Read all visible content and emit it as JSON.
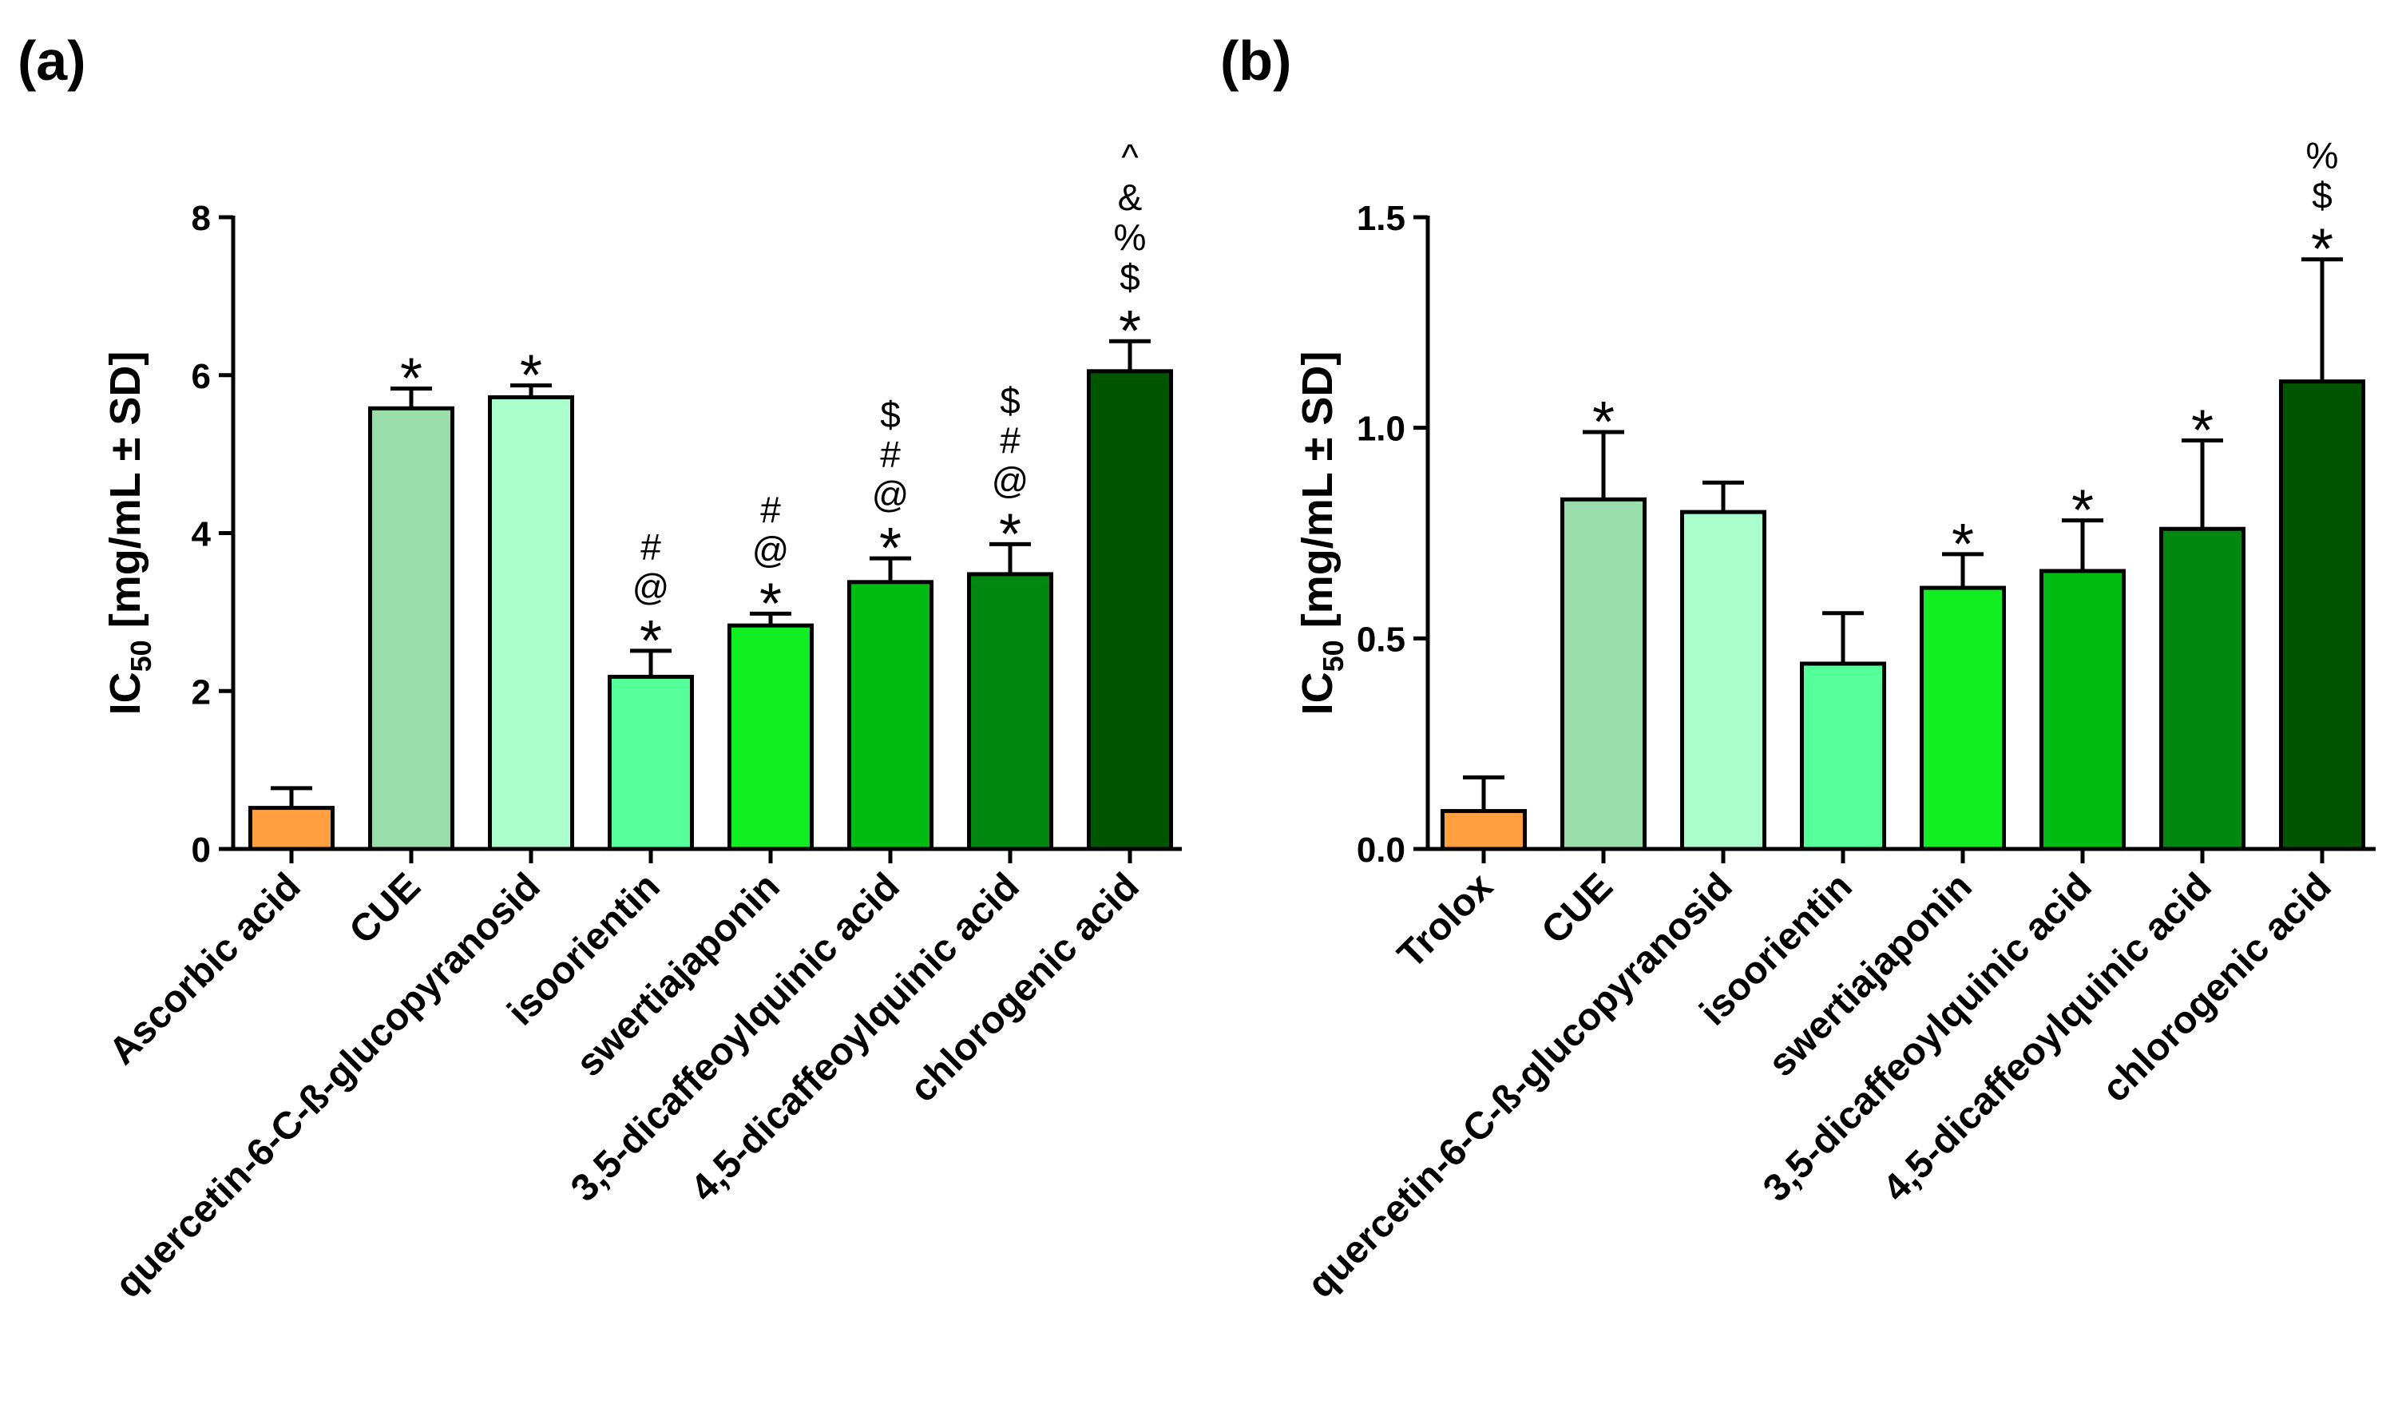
{
  "chart_data": [
    {
      "type": "bar",
      "panel_label": "(a)",
      "ylabel": "IC50 [mg/mL ± SD]",
      "ylabel_main": "IC",
      "ylabel_sub": "50",
      "ylabel_rest": " [mg/mL ± SD]",
      "ylim": [
        0,
        8
      ],
      "yticks": [
        "0",
        "2",
        "4",
        "6",
        "8"
      ],
      "ytick_values": [
        0,
        2,
        4,
        6,
        8
      ],
      "categories": [
        "Ascorbic acid",
        "CUE",
        "quercetin-6-C-ß-glucopyranosid",
        "isoorientin",
        "swertiajaponin",
        "3,5-dicaffeoylquinic acid",
        "4,5-dicaffeoylquinic acid",
        "chlorogenic acid"
      ],
      "values": [
        0.52,
        5.58,
        5.72,
        2.18,
        2.83,
        3.38,
        3.48,
        6.05
      ],
      "errors": [
        0.25,
        0.25,
        0.15,
        0.33,
        0.15,
        0.3,
        0.38,
        0.38
      ],
      "colors": [
        "#FF9F40",
        "#99DDAA",
        "#AAFFCC",
        "#55FF99",
        "#11EE22",
        "#00BB11",
        "#008811",
        "#005500"
      ],
      "annotations": [
        [],
        [
          "*"
        ],
        [
          "*"
        ],
        [
          "*",
          "@",
          "#"
        ],
        [
          "*",
          "@",
          "#"
        ],
        [
          "*",
          "@",
          "#",
          "$"
        ],
        [
          "*",
          "@",
          "#",
          "$"
        ],
        [
          "*",
          "$",
          "%",
          "&",
          "^"
        ]
      ],
      "grid": false,
      "legend": "none"
    },
    {
      "type": "bar",
      "panel_label": "(b)",
      "ylabel": "IC50 [mg/mL ± SD]",
      "ylabel_main": "IC",
      "ylabel_sub": "50",
      "ylabel_rest": " [mg/mL ± SD]",
      "ylim": [
        0,
        1.5
      ],
      "yticks": [
        "0.0",
        "0.5",
        "1.0",
        "1.5"
      ],
      "ytick_values": [
        0,
        0.5,
        1.0,
        1.5
      ],
      "categories": [
        "Trolox",
        "CUE",
        "quercetin-6-C-ß-glucopyranosid",
        "isoorientin",
        "swertiajaponin",
        "3,5-dicaffeoylquinic acid",
        "4,5-dicaffeoylquinic acid",
        "chlorogenic acid"
      ],
      "values": [
        0.09,
        0.83,
        0.8,
        0.44,
        0.62,
        0.66,
        0.76,
        1.11
      ],
      "errors": [
        0.08,
        0.16,
        0.07,
        0.12,
        0.08,
        0.12,
        0.21,
        0.29
      ],
      "colors": [
        "#FF9F40",
        "#99DDAA",
        "#AAFFCC",
        "#55FF99",
        "#11EE22",
        "#00BB11",
        "#008811",
        "#005500"
      ],
      "annotations": [
        [],
        [
          "*"
        ],
        [],
        [],
        [
          "*"
        ],
        [
          "*"
        ],
        [
          "*"
        ],
        [
          "*",
          "$",
          "%"
        ]
      ],
      "grid": false,
      "legend": "none"
    }
  ]
}
